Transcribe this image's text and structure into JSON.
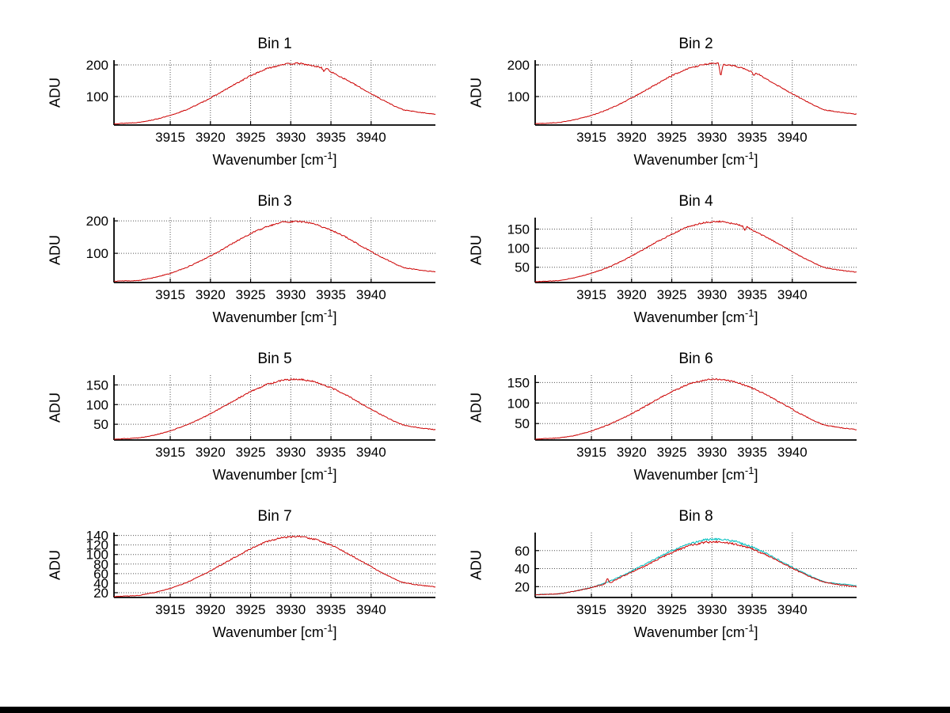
{
  "colors": {
    "background": "#ffffff",
    "axis": "#000000",
    "grid": "#555555",
    "series_red": "#cc0000",
    "series_cyan": "#00bfbf",
    "bottom_bar": "#000000"
  },
  "chart_data": [
    {
      "type": "line",
      "title": "Bin 1",
      "ylabel": "ADU",
      "xlabel_prefix": "Wavenumber [cm",
      "xlabel_sup": "-1",
      "xlabel_suffix": "]",
      "xlim": [
        3908,
        3948
      ],
      "ylim": [
        10,
        215
      ],
      "xticks": [
        3915,
        3920,
        3925,
        3930,
        3935,
        3940
      ],
      "yticks": [
        100,
        200
      ],
      "grid": true,
      "noise": 2.5,
      "series": [
        {
          "name": "spectrum",
          "color": "#cc0000",
          "x": [
            3908,
            3911,
            3913,
            3915,
            3917,
            3919,
            3921,
            3923,
            3925,
            3927,
            3929,
            3931,
            3933,
            3933.8,
            3934.1,
            3934.4,
            3935,
            3937,
            3939,
            3941,
            3943,
            3944,
            3946,
            3948
          ],
          "y": [
            14,
            18,
            27,
            40,
            58,
            82,
            109,
            138,
            166,
            188,
            202,
            205,
            196,
            192,
            179,
            190,
            178,
            152,
            123,
            95,
            69,
            58,
            50,
            44
          ]
        }
      ]
    },
    {
      "type": "line",
      "title": "Bin 2",
      "ylabel": "ADU",
      "xlabel_prefix": "Wavenumber [cm",
      "xlabel_sup": "-1",
      "xlabel_suffix": "]",
      "xlim": [
        3908,
        3948
      ],
      "ylim": [
        10,
        215
      ],
      "xticks": [
        3915,
        3920,
        3925,
        3930,
        3935,
        3940
      ],
      "yticks": [
        100,
        200
      ],
      "grid": true,
      "noise": 2.5,
      "series": [
        {
          "name": "spectrum",
          "color": "#cc0000",
          "x": [
            3908,
            3911,
            3913,
            3915,
            3917,
            3919,
            3921,
            3923,
            3925,
            3927,
            3929,
            3930.8,
            3931.1,
            3931.4,
            3933,
            3935,
            3935.2,
            3935.5,
            3937,
            3939,
            3941,
            3943,
            3944,
            3946,
            3948
          ],
          "y": [
            14,
            18,
            27,
            40,
            58,
            82,
            109,
            138,
            166,
            188,
            202,
            205,
            163,
            202,
            196,
            178,
            166,
            175,
            152,
            123,
            95,
            69,
            58,
            50,
            44
          ]
        }
      ]
    },
    {
      "type": "line",
      "title": "Bin 3",
      "ylabel": "ADU",
      "xlabel_prefix": "Wavenumber [cm",
      "xlabel_sup": "-1",
      "xlabel_suffix": "]",
      "xlim": [
        3908,
        3948
      ],
      "ylim": [
        10,
        210
      ],
      "xticks": [
        3915,
        3920,
        3925,
        3930,
        3935,
        3940
      ],
      "yticks": [
        100,
        200
      ],
      "grid": true,
      "noise": 2.5,
      "series": [
        {
          "name": "spectrum",
          "color": "#cc0000",
          "x": [
            3908,
            3911,
            3913,
            3915,
            3917,
            3919,
            3921,
            3923,
            3925,
            3927,
            3929,
            3931,
            3933,
            3935,
            3937,
            3939,
            3941,
            3943,
            3944,
            3946,
            3948
          ],
          "y": [
            14,
            16,
            25,
            38,
            56,
            79,
            105,
            134,
            161,
            182,
            196,
            199,
            190,
            172,
            148,
            119,
            92,
            67,
            56,
            48,
            43
          ]
        }
      ]
    },
    {
      "type": "line",
      "title": "Bin 4",
      "ylabel": "ADU",
      "xlabel_prefix": "Wavenumber [cm",
      "xlabel_sup": "-1",
      "xlabel_suffix": "]",
      "xlim": [
        3908,
        3948
      ],
      "ylim": [
        10,
        180
      ],
      "xticks": [
        3915,
        3920,
        3925,
        3930,
        3935,
        3940
      ],
      "yticks": [
        50,
        100,
        150
      ],
      "grid": true,
      "noise": 2.0,
      "series": [
        {
          "name": "spectrum",
          "color": "#cc0000",
          "x": [
            3908,
            3911,
            3913,
            3915,
            3917,
            3919,
            3921,
            3923,
            3925,
            3927,
            3929,
            3931,
            3933,
            3933.8,
            3934.1,
            3934.4,
            3935,
            3937,
            3939,
            3941,
            3943,
            3944,
            3946,
            3948
          ],
          "y": [
            12,
            15,
            23,
            34,
            49,
            68,
            91,
            115,
            137,
            156,
            167,
            170,
            163,
            158,
            147,
            156,
            147,
            126,
            103,
            79,
            58,
            49,
            42,
            37
          ]
        }
      ]
    },
    {
      "type": "line",
      "title": "Bin 5",
      "ylabel": "ADU",
      "xlabel_prefix": "Wavenumber [cm",
      "xlabel_sup": "-1",
      "xlabel_suffix": "]",
      "xlim": [
        3908,
        3948
      ],
      "ylim": [
        10,
        175
      ],
      "xticks": [
        3915,
        3920,
        3925,
        3930,
        3935,
        3940
      ],
      "yticks": [
        50,
        100,
        150
      ],
      "grid": true,
      "noise": 2.0,
      "series": [
        {
          "name": "spectrum",
          "color": "#cc0000",
          "x": [
            3908,
            3911,
            3913,
            3915,
            3917,
            3919,
            3921,
            3923,
            3925,
            3927,
            3929,
            3931,
            3933,
            3935,
            3937,
            3939,
            3941,
            3943,
            3944,
            3946,
            3948
          ],
          "y": [
            12,
            15,
            22,
            33,
            48,
            66,
            88,
            111,
            133,
            151,
            162,
            165,
            158,
            143,
            123,
            100,
            77,
            56,
            48,
            41,
            36
          ]
        }
      ]
    },
    {
      "type": "line",
      "title": "Bin 6",
      "ylabel": "ADU",
      "xlabel_prefix": "Wavenumber [cm",
      "xlabel_sup": "-1",
      "xlabel_suffix": "]",
      "xlim": [
        3908,
        3948
      ],
      "ylim": [
        10,
        168
      ],
      "xticks": [
        3915,
        3920,
        3925,
        3930,
        3935,
        3940
      ],
      "yticks": [
        50,
        100,
        150
      ],
      "grid": true,
      "noise": 2.0,
      "series": [
        {
          "name": "spectrum",
          "color": "#cc0000",
          "x": [
            3908,
            3911,
            3913,
            3915,
            3917,
            3919,
            3921,
            3923,
            3925,
            3927,
            3929,
            3931,
            3933,
            3935,
            3937,
            3939,
            3941,
            3943,
            3944,
            3946,
            3948
          ],
          "y": [
            12,
            15,
            21,
            32,
            46,
            64,
            84,
            107,
            128,
            145,
            156,
            158,
            151,
            137,
            118,
            96,
            74,
            54,
            46,
            40,
            35
          ]
        }
      ]
    },
    {
      "type": "line",
      "title": "Bin 7",
      "ylabel": "ADU",
      "xlabel_prefix": "Wavenumber [cm",
      "xlabel_sup": "-1",
      "xlabel_suffix": "]",
      "xlim": [
        3908,
        3948
      ],
      "ylim": [
        10,
        146
      ],
      "xticks": [
        3915,
        3920,
        3925,
        3930,
        3935,
        3940
      ],
      "yticks": [
        20,
        40,
        60,
        80,
        100,
        120,
        140
      ],
      "grid": true,
      "noise": 1.6,
      "series": [
        {
          "name": "spectrum",
          "color": "#cc0000",
          "x": [
            3908,
            3911,
            3913,
            3915,
            3917,
            3919,
            3921,
            3923,
            3925,
            3927,
            3929,
            3931,
            3933,
            3935,
            3937,
            3939,
            3941,
            3943,
            3944,
            3946,
            3948
          ],
          "y": [
            12,
            14,
            20,
            29,
            41,
            57,
            75,
            94,
            112,
            127,
            136,
            138,
            132,
            120,
            103,
            84,
            65,
            48,
            41,
            36,
            32
          ]
        }
      ]
    },
    {
      "type": "line",
      "title": "Bin 8",
      "ylabel": "ADU",
      "xlabel_prefix": "Wavenumber [cm",
      "xlabel_sup": "-1",
      "xlabel_suffix": "]",
      "xlim": [
        3908,
        3948
      ],
      "ylim": [
        8,
        80
      ],
      "xticks": [
        3915,
        3920,
        3925,
        3930,
        3935,
        3940
      ],
      "yticks": [
        20,
        40,
        60
      ],
      "grid": true,
      "noise": 1.1,
      "series": [
        {
          "name": "spectrum-cyan",
          "color": "#00bfbf",
          "x": [
            3908,
            3911,
            3913,
            3915,
            3917,
            3919,
            3921,
            3923,
            3925,
            3927,
            3929,
            3931,
            3933,
            3935,
            3937,
            3939,
            3941,
            3943,
            3944,
            3946,
            3948
          ],
          "y": [
            11,
            12,
            15,
            19,
            25,
            33,
            42,
            51,
            60,
            67,
            72,
            73,
            70,
            64,
            56,
            46,
            37,
            29,
            25,
            23,
            21
          ]
        },
        {
          "name": "spectrum-red",
          "color": "#cc0000",
          "x": [
            3908,
            3911,
            3913,
            3915,
            3916.7,
            3917.0,
            3917.3,
            3919,
            3921,
            3923,
            3925,
            3927,
            3929,
            3931,
            3933,
            3935,
            3937,
            3939,
            3941,
            3943,
            3944,
            3946,
            3948
          ],
          "y": [
            11,
            12,
            15,
            19,
            23,
            29,
            24,
            32,
            40,
            49,
            58,
            65,
            69,
            70,
            67,
            62,
            54,
            45,
            36,
            28,
            25,
            22,
            20
          ]
        }
      ]
    }
  ]
}
